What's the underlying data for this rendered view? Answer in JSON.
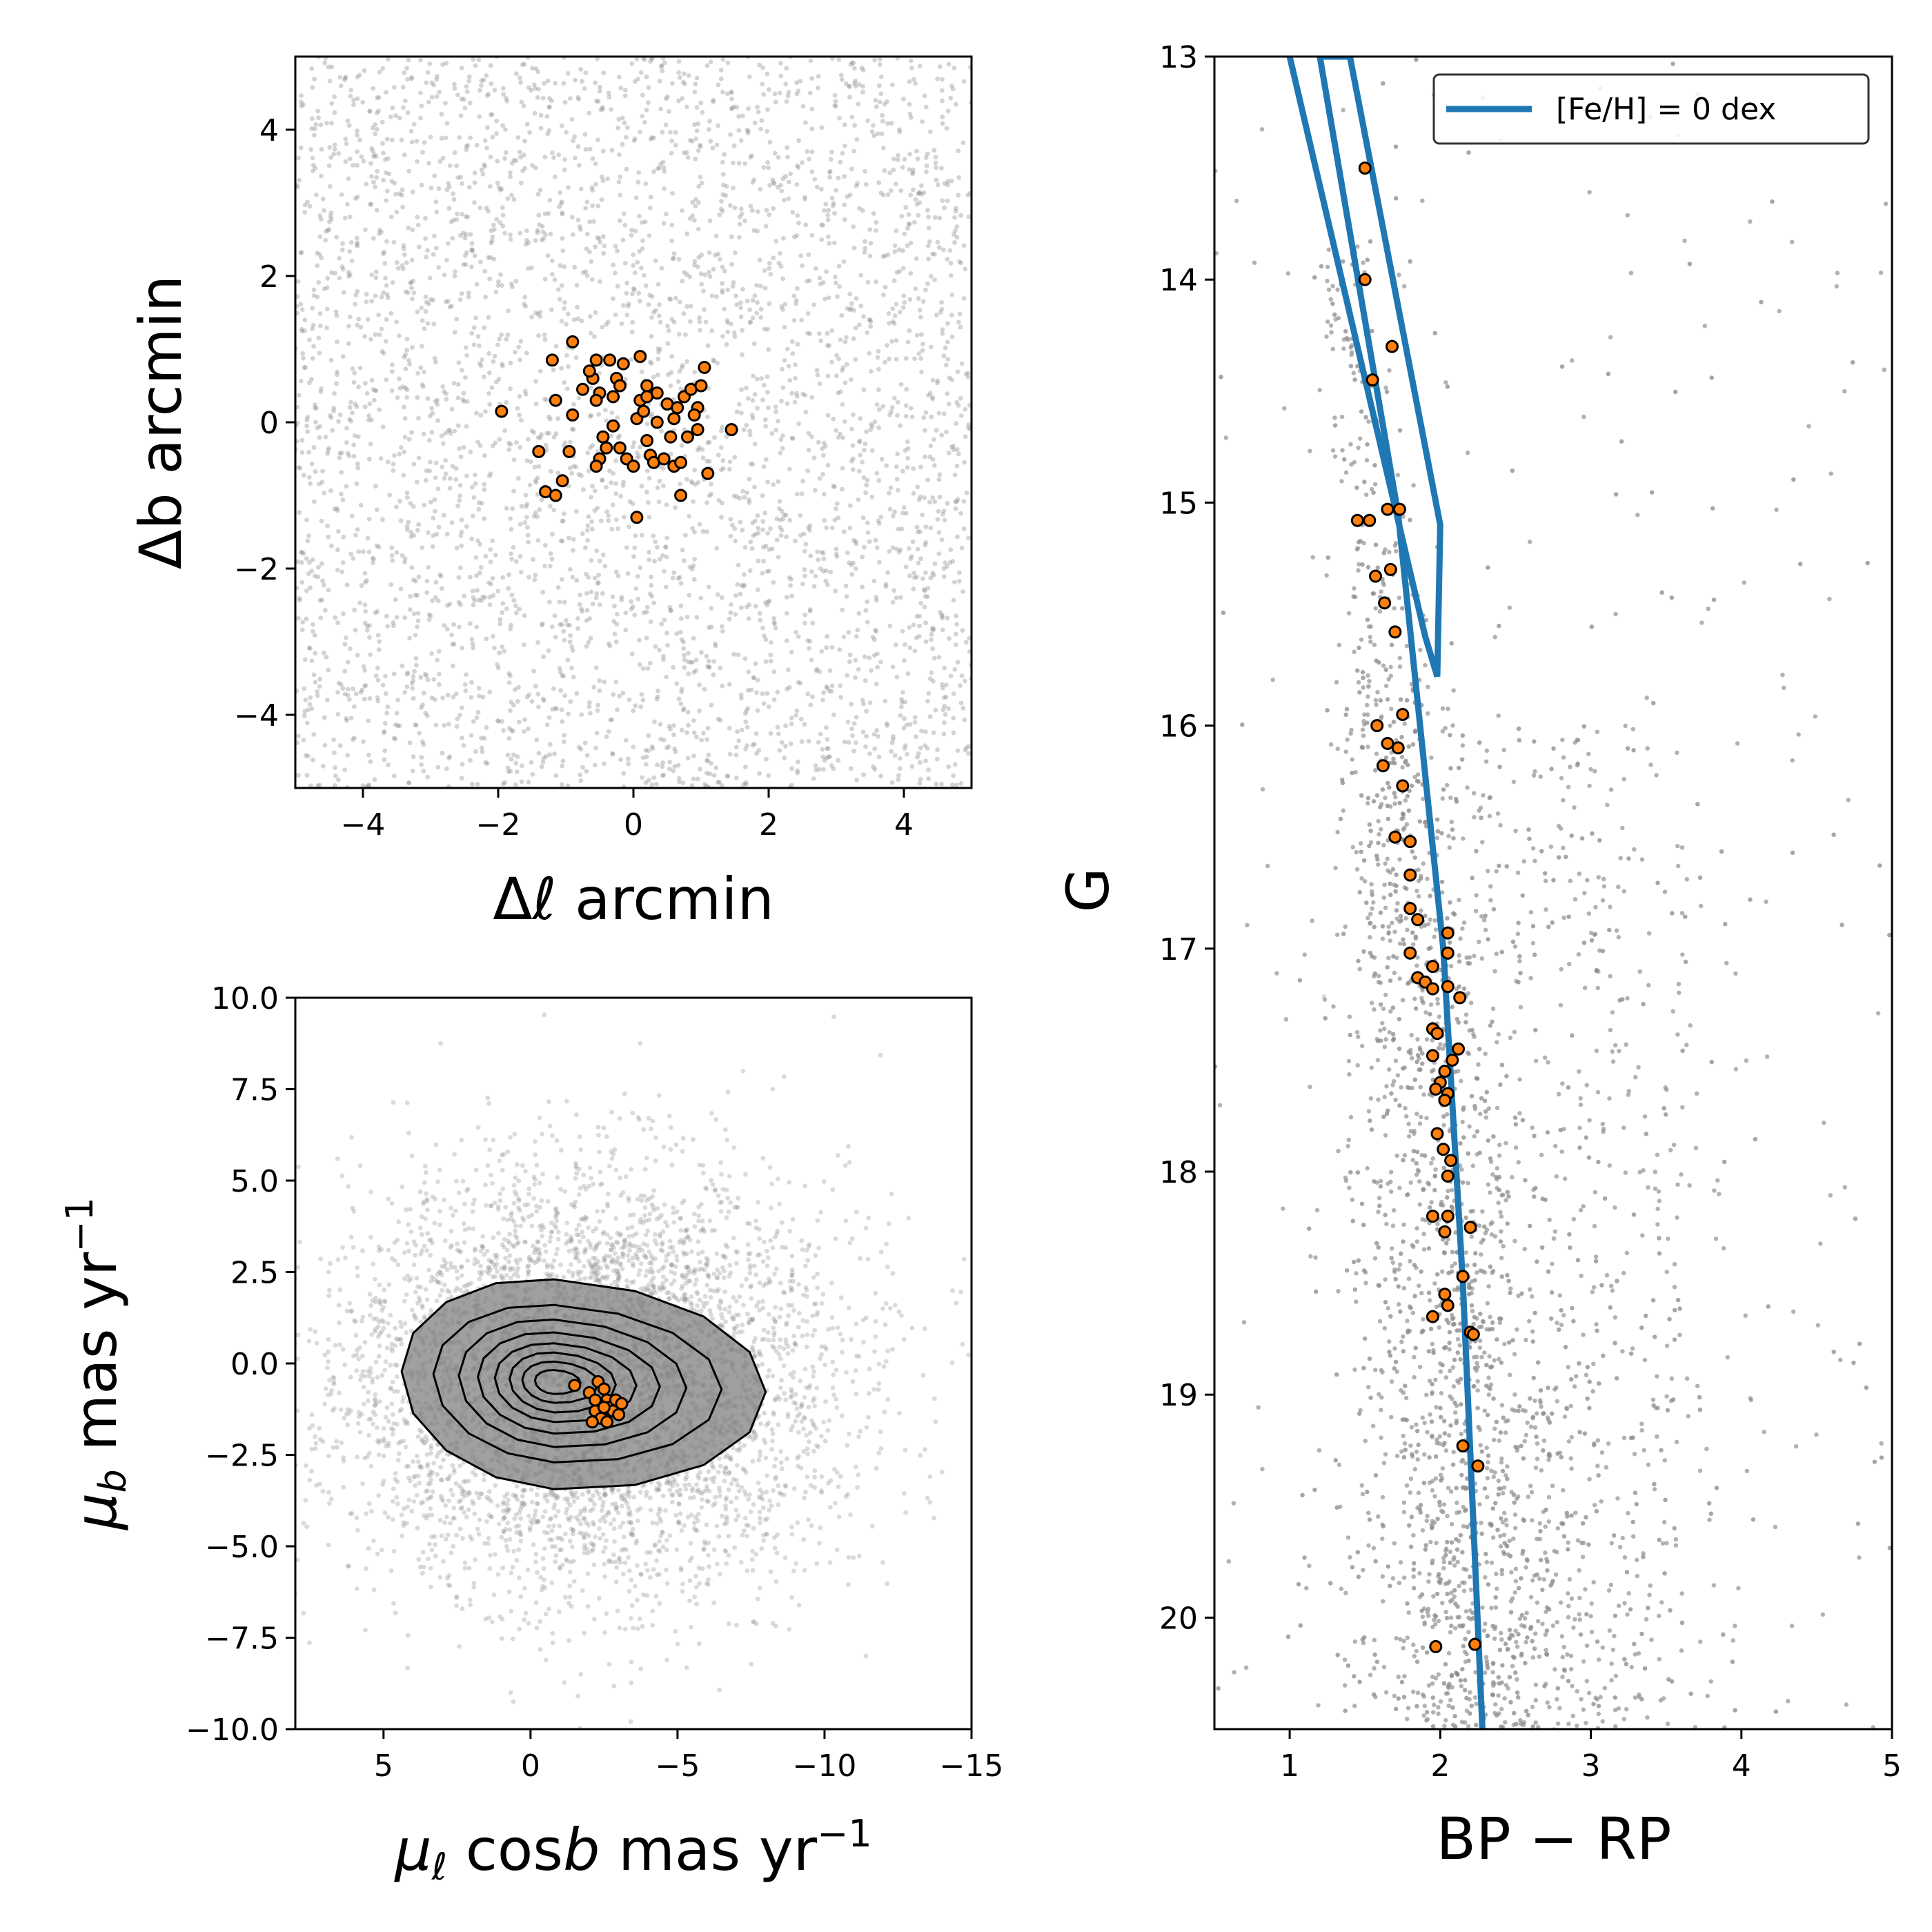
{
  "colors": {
    "field": "#8c8c8c",
    "member_fill": "#ff7f0e",
    "member_edge": "#000000",
    "isochrone": "#1f77b4",
    "contour_fill": "#808080",
    "contour_line": "#000000"
  },
  "chart_data": [
    {
      "type": "scatter",
      "id": "sky",
      "xlabel": "Δℓ  arcmin",
      "ylabel": "Δb  arcmin",
      "xlim": [
        -5,
        5
      ],
      "ylim": [
        -5,
        5
      ],
      "xticks": [
        {
          "v": -4,
          "label": "−4"
        },
        {
          "v": -2,
          "label": "−2"
        },
        {
          "v": 0,
          "label": "0"
        },
        {
          "v": 2,
          "label": "2"
        },
        {
          "v": 4,
          "label": "4"
        }
      ],
      "yticks": [
        {
          "v": -4,
          "label": "−4"
        },
        {
          "v": -2,
          "label": "−2"
        },
        {
          "v": 0,
          "label": "0"
        },
        {
          "v": 2,
          "label": "2"
        },
        {
          "v": 4,
          "label": "4"
        }
      ],
      "field": {
        "description": "uniform background field stars",
        "n": 3800
      },
      "members": [
        [
          -1.95,
          0.15
        ],
        [
          -0.9,
          1.1
        ],
        [
          -1.2,
          0.85
        ],
        [
          -1.15,
          0.3
        ],
        [
          -1.4,
          -0.4
        ],
        [
          -1.3,
          -0.95
        ],
        [
          -1.15,
          -1.0
        ],
        [
          -1.05,
          -0.8
        ],
        [
          -0.95,
          -0.4
        ],
        [
          -0.9,
          0.1
        ],
        [
          -0.6,
          0.6
        ],
        [
          -0.55,
          0.85
        ],
        [
          -0.5,
          0.4
        ],
        [
          -0.55,
          0.3
        ],
        [
          -0.45,
          -0.2
        ],
        [
          -0.5,
          -0.5
        ],
        [
          -0.55,
          -0.6
        ],
        [
          -0.35,
          0.85
        ],
        [
          -0.3,
          0.35
        ],
        [
          -0.25,
          0.6
        ],
        [
          -0.3,
          -0.05
        ],
        [
          -0.2,
          0.5
        ],
        [
          -0.15,
          0.8
        ],
        [
          -0.2,
          -0.35
        ],
        [
          -0.1,
          -0.5
        ],
        [
          0.0,
          -0.6
        ],
        [
          0.05,
          0.05
        ],
        [
          0.1,
          0.3
        ],
        [
          0.1,
          0.9
        ],
        [
          0.15,
          0.15
        ],
        [
          0.2,
          0.5
        ],
        [
          0.05,
          -1.3
        ],
        [
          0.2,
          -0.25
        ],
        [
          0.25,
          -0.45
        ],
        [
          0.3,
          -0.55
        ],
        [
          0.35,
          0.4
        ],
        [
          0.35,
          0.0
        ],
        [
          0.45,
          -0.5
        ],
        [
          0.5,
          0.25
        ],
        [
          0.55,
          -0.2
        ],
        [
          0.6,
          -0.6
        ],
        [
          0.65,
          0.2
        ],
        [
          0.7,
          -0.55
        ],
        [
          0.75,
          0.35
        ],
        [
          0.7,
          -1.0
        ],
        [
          0.8,
          -0.2
        ],
        [
          0.85,
          0.45
        ],
        [
          0.95,
          0.2
        ],
        [
          0.95,
          -0.1
        ],
        [
          1.0,
          0.5
        ],
        [
          1.05,
          0.75
        ],
        [
          1.1,
          -0.7
        ],
        [
          1.45,
          -0.1
        ],
        [
          -0.65,
          0.7
        ],
        [
          -0.75,
          0.45
        ],
        [
          0.6,
          0.05
        ],
        [
          0.9,
          0.1
        ],
        [
          -0.4,
          -0.35
        ],
        [
          0.2,
          0.35
        ]
      ]
    },
    {
      "type": "scatter",
      "id": "pm",
      "xlabel_parts": {
        "mu": "μ",
        "sub": "ℓ",
        "mid": " cos",
        "b": "b",
        "unit": "  mas yr",
        "exp": "−1"
      },
      "ylabel_parts": {
        "mu": "μ",
        "sub": "b",
        "unit": "  mas yr",
        "exp": "−1"
      },
      "xlim": [
        8,
        -15
      ],
      "ylim": [
        -10,
        10
      ],
      "xticks": [
        {
          "v": 5,
          "label": "5"
        },
        {
          "v": 0,
          "label": "0"
        },
        {
          "v": -5,
          "label": "−5"
        },
        {
          "v": -10,
          "label": "−10"
        },
        {
          "v": -15,
          "label": "−15"
        }
      ],
      "yticks": [
        {
          "v": 10,
          "label": "10.0"
        },
        {
          "v": 7.5,
          "label": "7.5"
        },
        {
          "v": 5,
          "label": "5.0"
        },
        {
          "v": 2.5,
          "label": "2.5"
        },
        {
          "v": 0,
          "label": "0.0"
        },
        {
          "v": -2.5,
          "label": "−2.5"
        },
        {
          "v": -5,
          "label": "−5.0"
        },
        {
          "v": -7.5,
          "label": "−7.5"
        },
        {
          "v": -10,
          "label": "−10.0"
        }
      ],
      "field": {
        "description": "field stars clustered around (-2, -0.5)",
        "n": 5200,
        "center": [
          -2.0,
          -0.5
        ],
        "sigma": [
          4.2,
          2.8
        ]
      },
      "contours": {
        "center": [
          -0.8,
          -0.5
        ],
        "half_widths": [
          [
            7.2,
            2.8
          ],
          [
            5.7,
            2.1
          ],
          [
            4.5,
            1.7
          ],
          [
            3.6,
            1.35
          ],
          [
            2.8,
            1.05
          ],
          [
            2.1,
            0.8
          ],
          [
            1.5,
            0.55
          ],
          [
            0.9,
            0.32
          ]
        ]
      },
      "members": [
        [
          -1.5,
          -0.6
        ],
        [
          -2.0,
          -0.8
        ],
        [
          -2.3,
          -0.5
        ],
        [
          -2.5,
          -0.7
        ],
        [
          -2.6,
          -1.0
        ],
        [
          -2.7,
          -1.2
        ],
        [
          -2.3,
          -1.1
        ],
        [
          -2.2,
          -1.3
        ],
        [
          -2.4,
          -1.5
        ],
        [
          -2.6,
          -1.6
        ],
        [
          -2.8,
          -1.3
        ],
        [
          -2.9,
          -1.0
        ],
        [
          -3.0,
          -1.4
        ],
        [
          -3.1,
          -1.1
        ],
        [
          -2.1,
          -1.6
        ],
        [
          -2.5,
          -1.2
        ],
        [
          -2.2,
          -1.0
        ]
      ]
    },
    {
      "type": "scatter",
      "id": "cmd",
      "xlabel": "BP − RP",
      "ylabel": "G",
      "xlim": [
        0.5,
        5
      ],
      "ylim": [
        20.5,
        13
      ],
      "xticks": [
        {
          "v": 1,
          "label": "1"
        },
        {
          "v": 2,
          "label": "2"
        },
        {
          "v": 3,
          "label": "3"
        },
        {
          "v": 4,
          "label": "4"
        },
        {
          "v": 5,
          "label": "5"
        }
      ],
      "yticks": [
        {
          "v": 13,
          "label": "13"
        },
        {
          "v": 14,
          "label": "14"
        },
        {
          "v": 15,
          "label": "15"
        },
        {
          "v": 16,
          "label": "16"
        },
        {
          "v": 17,
          "label": "17"
        },
        {
          "v": 18,
          "label": "18"
        },
        {
          "v": 19,
          "label": "19"
        },
        {
          "v": 20,
          "label": "20"
        }
      ],
      "legend": {
        "label": "[Fe/H]  =  0 dex",
        "position": "top-right"
      },
      "isochrone": [
        [
          1.0,
          13.0
        ],
        [
          1.9,
          15.6
        ],
        [
          1.98,
          15.78
        ],
        [
          2.0,
          15.1
        ],
        [
          1.4,
          13.0
        ],
        [
          1.2,
          13.0
        ],
        [
          1.72,
          15.05
        ],
        [
          2.02,
          17.0
        ],
        [
          2.15,
          18.5
        ],
        [
          2.28,
          20.5
        ]
      ],
      "field": {
        "description": "field stars, dense giant/dwarf plume around BP-RP 2.5",
        "n": 9000
      },
      "members": [
        [
          1.5,
          13.5
        ],
        [
          1.5,
          14.0
        ],
        [
          1.68,
          14.3
        ],
        [
          1.55,
          14.45
        ],
        [
          1.45,
          15.08
        ],
        [
          1.53,
          15.08
        ],
        [
          1.65,
          15.03
        ],
        [
          1.73,
          15.03
        ],
        [
          1.57,
          15.33
        ],
        [
          1.67,
          15.3
        ],
        [
          1.63,
          15.45
        ],
        [
          1.7,
          15.58
        ],
        [
          1.75,
          15.95
        ],
        [
          1.58,
          16.0
        ],
        [
          1.65,
          16.08
        ],
        [
          1.72,
          16.1
        ],
        [
          1.62,
          16.18
        ],
        [
          1.75,
          16.27
        ],
        [
          1.7,
          16.5
        ],
        [
          1.8,
          16.52
        ],
        [
          1.8,
          16.67
        ],
        [
          1.8,
          16.82
        ],
        [
          1.85,
          16.87
        ],
        [
          2.05,
          16.93
        ],
        [
          1.8,
          17.02
        ],
        [
          2.05,
          17.02
        ],
        [
          1.85,
          17.13
        ],
        [
          1.9,
          17.15
        ],
        [
          1.95,
          17.08
        ],
        [
          1.95,
          17.18
        ],
        [
          2.05,
          17.17
        ],
        [
          2.13,
          17.22
        ],
        [
          1.95,
          17.36
        ],
        [
          1.98,
          17.38
        ],
        [
          2.12,
          17.45
        ],
        [
          1.95,
          17.48
        ],
        [
          2.08,
          17.5
        ],
        [
          2.03,
          17.55
        ],
        [
          2.0,
          17.6
        ],
        [
          1.97,
          17.63
        ],
        [
          2.05,
          17.65
        ],
        [
          2.03,
          17.68
        ],
        [
          1.98,
          17.83
        ],
        [
          2.02,
          17.9
        ],
        [
          2.07,
          17.95
        ],
        [
          2.05,
          18.02
        ],
        [
          1.95,
          18.2
        ],
        [
          2.05,
          18.2
        ],
        [
          2.03,
          18.27
        ],
        [
          2.2,
          18.25
        ],
        [
          2.15,
          18.47
        ],
        [
          2.03,
          18.55
        ],
        [
          2.05,
          18.6
        ],
        [
          1.95,
          18.65
        ],
        [
          2.2,
          18.72
        ],
        [
          2.22,
          18.73
        ],
        [
          2.15,
          19.23
        ],
        [
          2.25,
          19.32
        ],
        [
          1.97,
          20.13
        ],
        [
          2.23,
          20.12
        ]
      ]
    }
  ]
}
